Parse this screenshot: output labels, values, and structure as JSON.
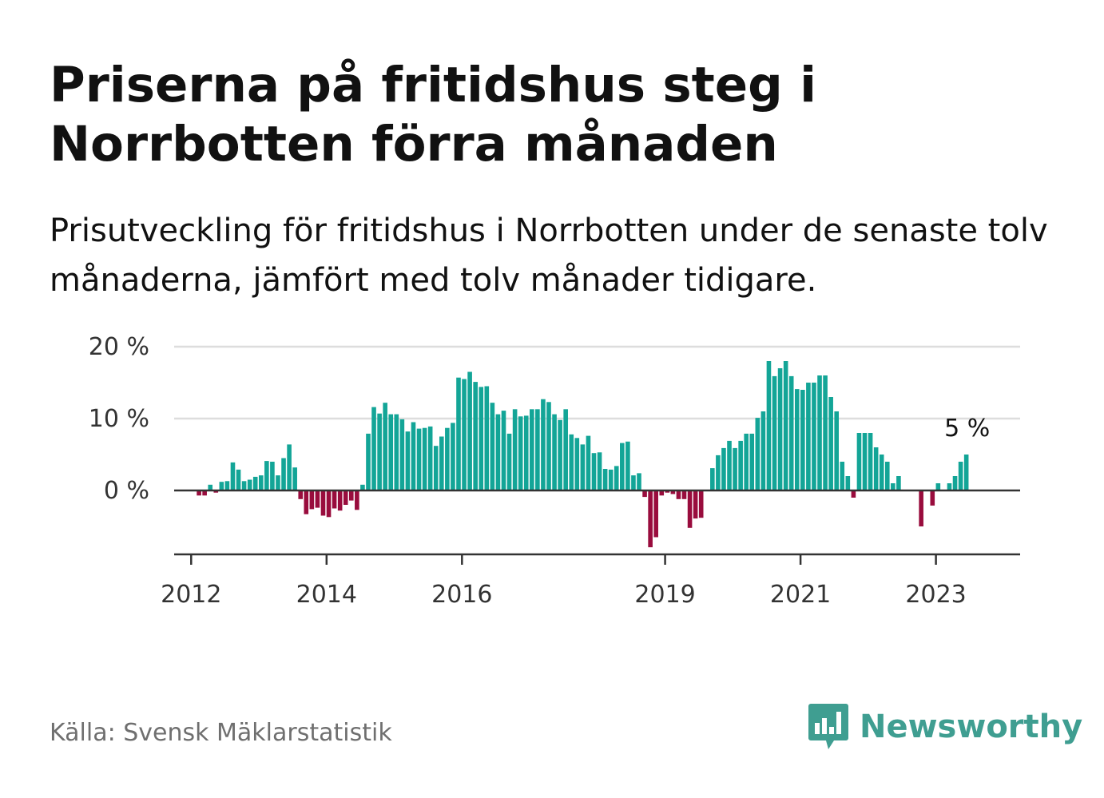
{
  "title": "Priserna på fritidshus steg i Norrbotten förra månaden",
  "subtitle": "Prisutveckling för fritidshus i Norrbotten under de senaste tolv månaderna, jämfört med tolv månader tidigare.",
  "source": "Källa: Svensk Mäklarstatistik",
  "logo": {
    "text": "Newsworthy",
    "icon": "newsworthy-chart-icon"
  },
  "colors": {
    "positive": "#13a597",
    "negative": "#990c3d",
    "grid": "#dddddd",
    "axis": "#333333",
    "brand": "#3f9e91"
  },
  "chart_data": {
    "type": "bar",
    "ylim": [
      -9,
      20
    ],
    "yticks": [
      0,
      10,
      20
    ],
    "ytick_labels": [
      "0 %",
      "10 %",
      "20 %"
    ],
    "xticks": [
      {
        "label": "2012",
        "index": 2
      },
      {
        "label": "2014",
        "index": 26
      },
      {
        "label": "2016",
        "index": 50
      },
      {
        "label": "2019",
        "index": 86
      },
      {
        "label": "2021",
        "index": 110
      },
      {
        "label": "2023",
        "index": 134
      }
    ],
    "annotation": "5 %",
    "first_month": "2011-11",
    "values": [
      0,
      0,
      0,
      -0.7,
      -0.7,
      0.8,
      -0.3,
      1.2,
      1.3,
      3.9,
      2.9,
      1.3,
      1.5,
      1.9,
      2.1,
      4.1,
      4.0,
      2.1,
      4.5,
      6.4,
      3.2,
      -1.2,
      -3.3,
      -2.6,
      -2.4,
      -3.5,
      -3.7,
      -2.5,
      -2.8,
      -2.0,
      -1.4,
      -2.7,
      0.8,
      7.9,
      11.6,
      10.7,
      12.2,
      10.6,
      10.6,
      9.9,
      8.2,
      9.5,
      8.6,
      8.7,
      8.9,
      6.2,
      7.5,
      8.7,
      9.4,
      15.7,
      15.5,
      16.5,
      15.1,
      14.4,
      14.5,
      12.2,
      10.6,
      11.1,
      7.9,
      11.3,
      10.3,
      10.4,
      11.3,
      11.3,
      12.7,
      12.3,
      10.6,
      9.8,
      11.3,
      7.8,
      7.3,
      6.4,
      7.6,
      5.2,
      5.3,
      3.0,
      2.9,
      3.4,
      6.6,
      6.8,
      2.1,
      2.4,
      -0.9,
      -7.9,
      -6.5,
      -0.7,
      -0.3,
      -0.5,
      -1.2,
      -1.2,
      -5.2,
      -3.9,
      -3.8,
      0,
      3.1,
      4.9,
      5.9,
      6.9,
      5.9,
      6.9,
      7.9,
      7.9,
      10.1,
      11.0,
      18.0,
      15.9,
      17.0,
      18.0,
      15.9,
      14.1,
      14.0,
      15.0,
      15.0,
      16.0,
      16.0,
      13.0,
      11.0,
      4.0,
      2.0,
      -1.0,
      8.0,
      8.0,
      8.0,
      6.0,
      5.0,
      4.0,
      1.0,
      2.0,
      0,
      0,
      0,
      -5.0,
      0,
      -2.1,
      1.0,
      0,
      1.0,
      2.0,
      4.0,
      5.0
    ]
  }
}
